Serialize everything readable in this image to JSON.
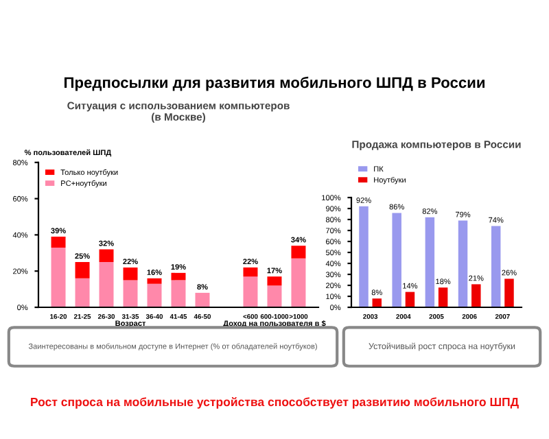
{
  "chart_data": [
    {
      "type": "bar",
      "stacked": true,
      "title": "Ситуация с использованием компьютеров\n(в Москве)",
      "ylabel": "% пользователей ШПД",
      "xlabel": "Возраст",
      "categories": [
        "16-20",
        "21-25",
        "26-30",
        "31-35",
        "36-40",
        "41-45",
        "46-50",
        null,
        "<600",
        "600-1000",
        ">1000"
      ],
      "series": [
        {
          "name": "PC+ноутбуки",
          "color": "#ff88aa",
          "values": [
            33,
            16,
            25,
            15,
            13,
            15,
            8,
            null,
            17,
            12,
            27
          ]
        },
        {
          "name": "Только ноутбуки",
          "color": "#ff0000",
          "values": [
            6,
            9,
            7,
            7,
            3,
            4,
            0,
            null,
            5,
            5,
            7
          ]
        }
      ],
      "totals": [
        "39%",
        "25%",
        "32%",
        "22%",
        "16%",
        "19%",
        "8%",
        null,
        "22%",
        "17%",
        "34%"
      ],
      "ylim": [
        0,
        80
      ],
      "yticks": [
        {
          "value": 0,
          "label": "0%"
        },
        {
          "value": 20,
          "label": "20%"
        },
        {
          "value": 40,
          "label": "40%"
        },
        {
          "value": 60,
          "label": "60%"
        },
        {
          "value": 80,
          "label": "80%"
        }
      ],
      "legend": "top left",
      "grid": false,
      "annotations": [
        "Предпосылки для развития мобильного ШПД в России",
        "Доход на пользователя в $",
        "Заинтересованы в мобильном доступе в Интернет (% от обладателей ноутбуков)",
        "Рост спроса на мобильные устройства способствует развитию мобильного ШПД"
      ]
    },
    {
      "type": "bar",
      "title": "Продажа компьютеров в России",
      "categories": [
        "2003",
        "2004",
        "2005",
        "2006",
        "2007"
      ],
      "series": [
        {
          "name": "ПК",
          "color": "#9999ee",
          "values": [
            92,
            86,
            82,
            79,
            74
          ],
          "value_labels": [
            "92%",
            "86%",
            "82%",
            "79%",
            "74%"
          ]
        },
        {
          "name": "Ноутбуки",
          "color": "#ee0000",
          "values": [
            8,
            14,
            18,
            21,
            26
          ],
          "value_labels": [
            "8%",
            "14%",
            "18%",
            "21%",
            "26%"
          ]
        }
      ],
      "ylim": [
        0,
        100
      ],
      "yticks": [
        {
          "value": 0,
          "label": "0%"
        },
        {
          "value": 10,
          "label": "10%"
        },
        {
          "value": 20,
          "label": "20%"
        },
        {
          "value": 30,
          "label": "30%"
        },
        {
          "value": 40,
          "label": "40%"
        },
        {
          "value": 50,
          "label": "50%"
        },
        {
          "value": 60,
          "label": "60%"
        },
        {
          "value": 70,
          "label": "70%"
        },
        {
          "value": 80,
          "label": "80%"
        },
        {
          "value": 90,
          "label": "90%"
        },
        {
          "value": 100,
          "label": "100%"
        }
      ],
      "legend": "top left",
      "grid": false,
      "annotations": [
        "Устойчивый рост спроса на ноутбуки"
      ]
    }
  ]
}
